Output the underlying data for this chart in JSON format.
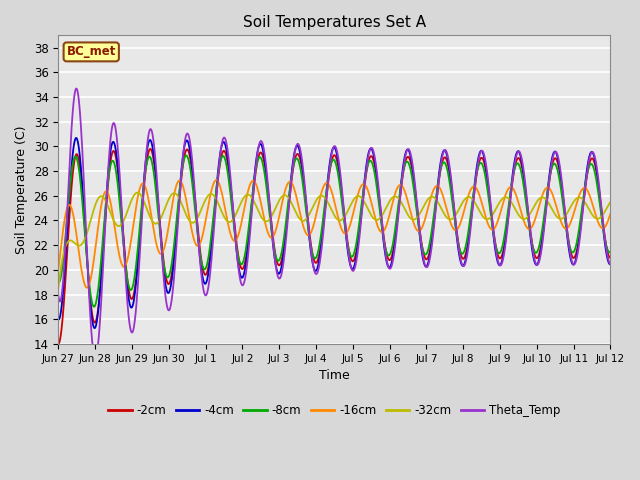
{
  "title": "Soil Temperatures Set A",
  "xlabel": "Time",
  "ylabel": "Soil Temperature (C)",
  "ylim": [
    14,
    39
  ],
  "yticks": [
    14,
    16,
    18,
    20,
    22,
    24,
    26,
    28,
    30,
    32,
    34,
    36,
    38
  ],
  "background_color": "#e8e8e8",
  "annotation_text": "BC_met",
  "annotation_bg": "#ffff99",
  "annotation_border": "#8b4513",
  "series_colors": {
    "-2cm": "#cc0000",
    "-4cm": "#0000cc",
    "-8cm": "#00aa00",
    "-16cm": "#ff8800",
    "-32cm": "#bbbb00",
    "Theta_Temp": "#9933cc"
  },
  "x_tick_labels": [
    "Jun 27",
    "Jun 28",
    "Jun 29",
    "Jun 30",
    "Jul 1",
    "Jul 2",
    "Jul 3",
    "Jul 4",
    "Jul 5",
    "Jul 6",
    "Jul 7",
    "Jul 8",
    "Jul 9",
    "Jul 10",
    "Jul 11",
    "Jul 12"
  ]
}
